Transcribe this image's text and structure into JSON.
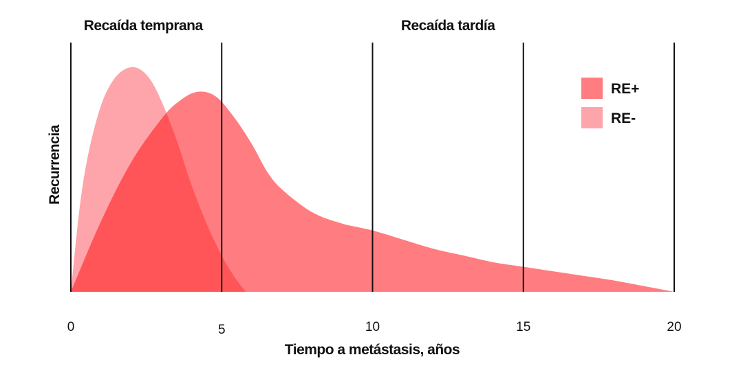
{
  "chart_data": {
    "type": "area",
    "xlabel": "Tiempo a metástasis, años",
    "ylabel": "Recurrencia",
    "xlim": [
      0,
      20
    ],
    "ylim": [
      0,
      1
    ],
    "xticks": [
      0,
      5,
      10,
      15,
      20
    ],
    "xtick_labels": [
      "0",
      "5",
      "10",
      "15",
      "20"
    ],
    "vlines": [
      0,
      5,
      10,
      15,
      20
    ],
    "regions": [
      {
        "label": "Recaída temprana",
        "center_x": 2.4
      },
      {
        "label": "Recaída tardía",
        "center_x": 12.5
      }
    ],
    "legend": {
      "position": "top-right"
    },
    "series": [
      {
        "name": "RE-",
        "color": "#fda5ab",
        "x": [
          0,
          0.3,
          0.6,
          1.0,
          1.4,
          1.8,
          2.2,
          2.6,
          3.0,
          3.5,
          4.0,
          4.5,
          5.0,
          5.4,
          5.8
        ],
        "y": [
          0,
          0.38,
          0.62,
          0.82,
          0.93,
          0.98,
          0.985,
          0.94,
          0.84,
          0.67,
          0.47,
          0.3,
          0.16,
          0.07,
          0
        ]
      },
      {
        "name": "RE+",
        "color": "#ff7d80",
        "x": [
          0,
          1.0,
          2.0,
          3.0,
          3.6,
          4.2,
          4.8,
          5.4,
          6.0,
          6.5,
          7.0,
          8.0,
          9.0,
          10.0,
          11.0,
          12.0,
          13.0,
          14.0,
          15.0,
          16.0,
          17.0,
          18.0,
          19.0,
          20.0
        ],
        "y": [
          0,
          0.31,
          0.57,
          0.76,
          0.84,
          0.88,
          0.86,
          0.77,
          0.65,
          0.53,
          0.45,
          0.35,
          0.3,
          0.27,
          0.23,
          0.19,
          0.16,
          0.13,
          0.11,
          0.09,
          0.07,
          0.05,
          0.025,
          0
        ]
      }
    ],
    "overlap_color": "#ff5558"
  }
}
